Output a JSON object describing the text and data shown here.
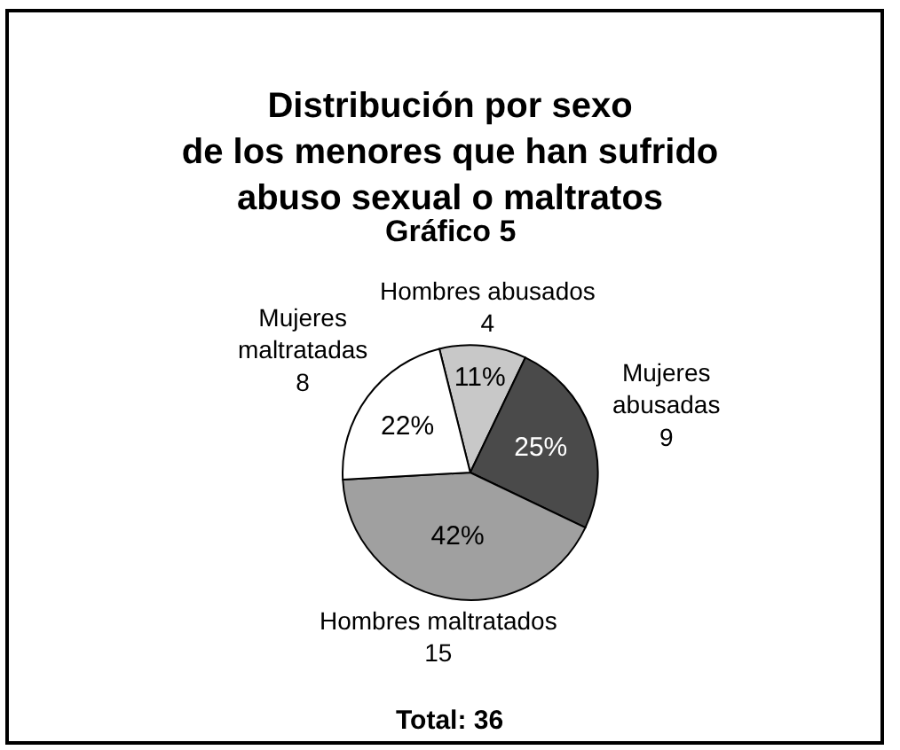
{
  "chart_data": {
    "type": "pie",
    "title": "Distribución por sexo\nde los menores que han sufrido\nabuso sexual o maltratos",
    "subtitle": "Gráfico 5",
    "categories": [
      "Hombres abusados\n4",
      "Mujeres abusadas\n9",
      "Hombres maltratados\n15",
      "Mujeres maltratadas\n8"
    ],
    "values": [
      11,
      25,
      42,
      22
    ],
    "value_labels": [
      "11%",
      "25%",
      "42%",
      "22%"
    ],
    "colors": [
      "#c8c8c8",
      "#4a4a4a",
      "#a0a0a0",
      "#ffffff"
    ],
    "annotations": [
      "Total: 36"
    ],
    "legend": false
  }
}
